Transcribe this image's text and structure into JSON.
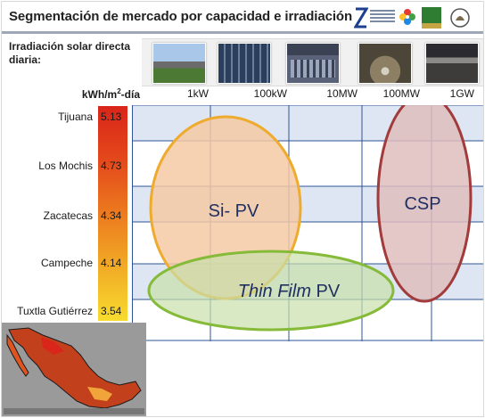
{
  "slide": {
    "title": "Segmentación de mercado por capacidad e irradiación",
    "logos": [
      "instituto-investigaciones-electricas-logo",
      "flower-logo",
      "secretaria-energia-logo",
      "mexico-coat-of-arms-logo"
    ],
    "irradiation_label": "Irradiación solar directa diaria:",
    "units_label": "kWh/m²-día",
    "capacity_labels": [
      "1kW",
      "100kW",
      "10MW",
      "100MW",
      "1GW"
    ],
    "cities": [
      {
        "name": "Tijuana",
        "value": "5.13"
      },
      {
        "name": "Los Mochis",
        "value": "4.73"
      },
      {
        "name": "Zacatecas",
        "value": "4.34"
      },
      {
        "name": "Campeche",
        "value": "4.14"
      },
      {
        "name": "Tuxtla Gutiérrez",
        "value": "3.54"
      }
    ],
    "regions": {
      "sipv": "Si- PV",
      "thinfilm_italic": "Thin Film",
      "thinfilm_suffix": " PV",
      "csp": "CSP"
    },
    "colors": {
      "sipv_fill": "#f4c9a5",
      "sipv_stroke": "#eeab2d",
      "thinfilm_fill": "#c8e0a9",
      "thinfilm_stroke": "#86bb3a",
      "csp_fill": "#dfbdbd",
      "csp_stroke": "#a23b3b",
      "grid_band": "#dde6f2",
      "grid_line": "#2f5597",
      "label_text": "#1f2f62"
    }
  }
}
